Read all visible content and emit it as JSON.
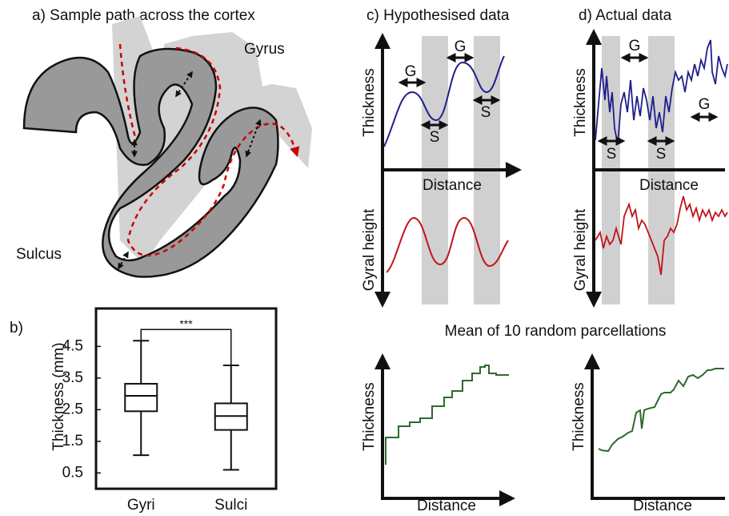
{
  "panels": {
    "a": {
      "title": "a) Sample path across the cortex",
      "gyrus": "Gyrus",
      "sulcus": "Sulcus"
    },
    "b": {
      "label": "b)"
    },
    "c": {
      "title": "c) Hypothesised data",
      "y_label_top": "Thickness",
      "x_label": "Distance",
      "y_label_bottom": "Gyral height",
      "marks": [
        "G",
        "S",
        "G",
        "S"
      ]
    },
    "d": {
      "title": "d) Actual data",
      "y_label_top": "Thickness",
      "x_label": "Distance",
      "y_label_bottom": "Gyral height",
      "marks": [
        "G",
        "G",
        "S",
        "S"
      ]
    },
    "mean_title": "Mean of 10 random parcellations",
    "e": {
      "y_label": "Thickness",
      "x_label": "Distance"
    },
    "f": {
      "y_label": "Thickness",
      "x_label": "Distance"
    }
  },
  "chart_data": {
    "type": "box",
    "ylabel": "Thickness (mm)",
    "categories": [
      "Gyri",
      "Sulci"
    ],
    "stats": [
      {
        "whislo": 1.06,
        "q1": 2.45,
        "median": 2.94,
        "q3": 3.32,
        "whishi": 4.68
      },
      {
        "whislo": 0.6,
        "q1": 1.86,
        "median": 2.3,
        "q3": 2.7,
        "whishi": 3.9
      }
    ],
    "significance": "***",
    "ylim": [
      0,
      5.7
    ],
    "yticks": [
      0.5,
      1.5,
      2.5,
      3.5,
      4.5
    ],
    "color": "#ffffff"
  }
}
